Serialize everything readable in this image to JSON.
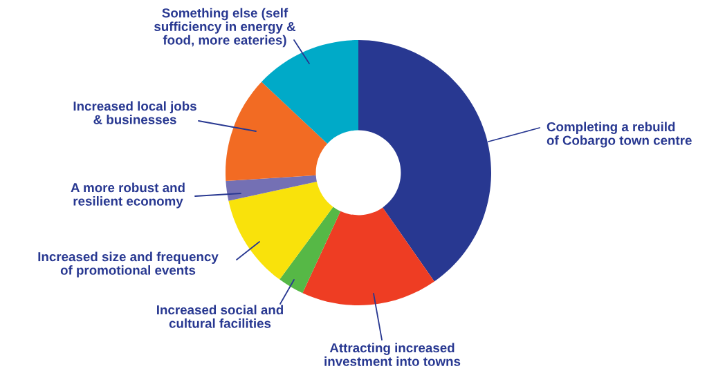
{
  "chart_data": {
    "type": "donut",
    "categories": [
      "Completing a rebuild\nof Cobargo town centre",
      "Attracting increased\ninvestment into towns",
      "Increased social and\ncultural facilities",
      "Increased size and frequency\nof promotional events",
      "A more robust and\nresilient economy",
      "Increased local jobs\n& businesses",
      "Something else (self\nsufficiency in energy &\nfood, more eateries)"
    ],
    "values": [
      40.3,
      16.6,
      3.2,
      11.5,
      2.4,
      13,
      13
    ],
    "colors": [
      "#283891",
      "#ee3d23",
      "#56b846",
      "#f9e20b",
      "#7470b4",
      "#f26b23",
      "#00aac8"
    ],
    "legend": false
  }
}
